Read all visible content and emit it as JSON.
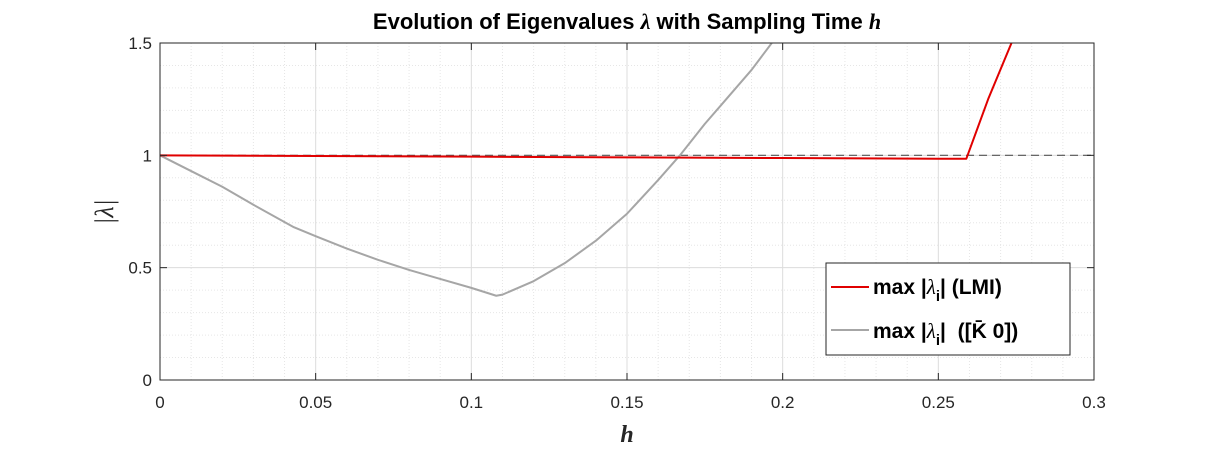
{
  "chart_data": {
    "type": "line",
    "title": {
      "prefix": "Evolution of Eigenvalues ",
      "lambda": "λ",
      "middle": " with Sampling Time ",
      "h": "h"
    },
    "xlabel": "h",
    "ylabel": "|λ|",
    "xlim": [
      0,
      0.3
    ],
    "ylim": [
      0,
      1.5
    ],
    "xticks": [
      0,
      0.05,
      0.1,
      0.15,
      0.2,
      0.25,
      0.3
    ],
    "xtick_labels": [
      "0",
      "0.05",
      "0.1",
      "0.15",
      "0.2",
      "0.25",
      "0.3"
    ],
    "yticks": [
      0,
      0.5,
      1,
      1.5
    ],
    "ytick_labels": [
      "0",
      "0.5",
      "1",
      "1.5"
    ],
    "grid": true,
    "minor_grid": true,
    "legend_position": "lower-right",
    "reference_line": {
      "y": 1,
      "style": "dashed",
      "color": "#555555"
    },
    "series": [
      {
        "name": "max |λi| (LMI)",
        "color": "#e00000",
        "x": [
          0,
          0.05,
          0.1,
          0.15,
          0.2,
          0.25,
          0.259,
          0.266,
          0.2735
        ],
        "y": [
          1.0,
          0.997,
          0.994,
          0.991,
          0.988,
          0.985,
          0.985,
          1.25,
          1.5
        ]
      },
      {
        "name": "max |λi| ([K̄ 0])",
        "color": "#a6a6a6",
        "x": [
          0,
          0.01,
          0.02,
          0.03,
          0.043,
          0.05,
          0.06,
          0.07,
          0.08,
          0.09,
          0.1,
          0.108,
          0.11,
          0.12,
          0.13,
          0.14,
          0.15,
          0.16,
          0.167,
          0.175,
          0.18,
          0.19,
          0.1965
        ],
        "y": [
          1.0,
          0.93,
          0.86,
          0.78,
          0.68,
          0.64,
          0.585,
          0.535,
          0.49,
          0.45,
          0.41,
          0.375,
          0.38,
          0.44,
          0.52,
          0.62,
          0.74,
          0.89,
          1.0,
          1.14,
          1.22,
          1.38,
          1.5
        ]
      }
    ],
    "legend": [
      {
        "prefix": "max |",
        "lambda": "λ",
        "sub": "i",
        "suffix": "| (LMI)"
      },
      {
        "prefix": "max |",
        "lambda": "λ",
        "sub": "i",
        "suffix": "|  ([",
        "kbar": "K̄",
        "suffix2": " 0])"
      }
    ]
  }
}
